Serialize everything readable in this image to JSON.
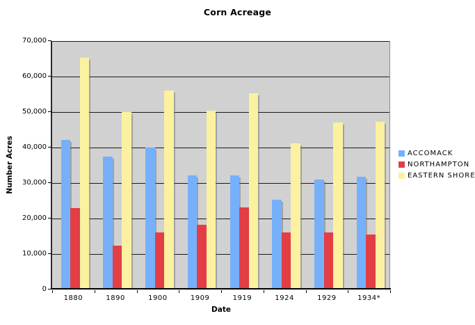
{
  "chart_data": {
    "type": "bar",
    "title": "Corn Acreage",
    "xlabel": "Date",
    "ylabel": "Number Acres",
    "categories": [
      "1880",
      "1890",
      "1900",
      "1909",
      "1919",
      "1924",
      "1929",
      "1934*"
    ],
    "series": [
      {
        "name": "ACCOMACK",
        "color": "#76B0FA",
        "values": [
          42200,
          37500,
          40100,
          32100,
          32100,
          25300,
          31000,
          31800
        ]
      },
      {
        "name": "NORTHAMPTON",
        "color": "#E23E44",
        "values": [
          23000,
          12400,
          16000,
          18300,
          23100,
          16000,
          16000,
          15400
        ]
      },
      {
        "name": "EASTERN SHORE",
        "color": "#FBF1A1",
        "values": [
          65200,
          50000,
          56100,
          50400,
          55300,
          41100,
          47000,
          47300
        ]
      }
    ],
    "ylim": [
      0,
      70000
    ],
    "ytick_step": 10000,
    "ytick_labels": [
      "0",
      "10,000",
      "20,000",
      "30,000",
      "40,000",
      "50,000",
      "60,000",
      "70,000"
    ],
    "grid": true,
    "legend_position": "right",
    "plot_background": "#D1D1D1",
    "gridline_color": "#1a1a1a"
  }
}
